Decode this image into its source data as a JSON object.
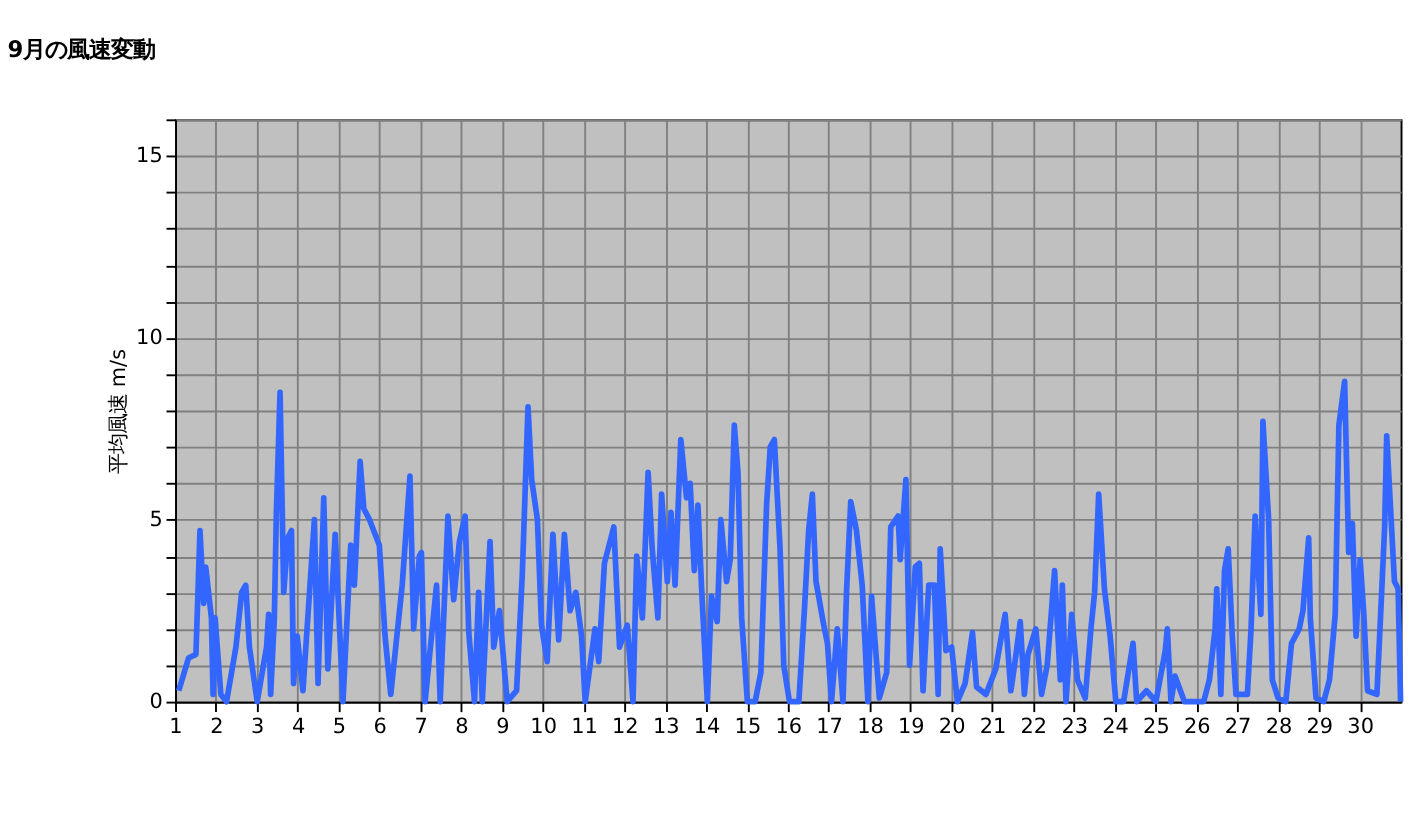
{
  "chart_data": {
    "type": "line",
    "title": "9月の風速変動",
    "ylabel": "平均風速 m/s",
    "xlim": [
      1,
      31
    ],
    "ylim": [
      0,
      16
    ],
    "xticks": [
      1,
      2,
      3,
      4,
      5,
      6,
      7,
      8,
      9,
      10,
      11,
      12,
      13,
      14,
      15,
      16,
      17,
      18,
      19,
      20,
      21,
      22,
      23,
      24,
      25,
      26,
      27,
      28,
      29,
      30
    ],
    "yticks": [
      0,
      {
        "value": 1,
        "label": null
      },
      {
        "value": 2,
        "label": null
      },
      {
        "value": 3,
        "label": null
      },
      {
        "value": 4,
        "label": null
      },
      5,
      {
        "value": 6,
        "label": null
      },
      {
        "value": 7,
        "label": null
      },
      {
        "value": 8,
        "label": null
      },
      {
        "value": 9,
        "label": null
      },
      10,
      {
        "value": 11,
        "label": null
      },
      {
        "value": 12,
        "label": null
      },
      {
        "value": 13,
        "label": null
      },
      {
        "value": 14,
        "label": null
      },
      15,
      {
        "value": 16,
        "label": null
      }
    ],
    "grid": true,
    "marker": "none",
    "line_style": "solid",
    "x": [
      1.09,
      1.33,
      1.51,
      1.61,
      1.7,
      1.75,
      1.89,
      1.93,
      1.98,
      2.12,
      2.26,
      2.49,
      2.63,
      2.73,
      2.82,
      3.01,
      3.24,
      3.29,
      3.34,
      3.43,
      3.48,
      3.57,
      3.66,
      3.76,
      3.85,
      3.9,
      3.99,
      4.13,
      4.41,
      4.5,
      4.64,
      4.74,
      4.92,
      5.11,
      5.3,
      5.39,
      5.53,
      5.62,
      5.76,
      6.0,
      6.14,
      6.28,
      6.56,
      6.75,
      6.84,
      6.98,
      7.03,
      7.12,
      7.4,
      7.49,
      7.68,
      7.82,
      7.96,
      8.1,
      8.19,
      8.33,
      8.43,
      8.52,
      8.71,
      8.8,
      8.94,
      9.13,
      9.36,
      9.5,
      9.64,
      9.73,
      9.87,
      9.97,
      10.11,
      10.25,
      10.39,
      10.53,
      10.67,
      10.81,
      10.95,
      11.04,
      11.28,
      11.37,
      11.51,
      11.74,
      11.88,
      12.07,
      12.21,
      12.3,
      12.44,
      12.58,
      12.68,
      12.82,
      12.91,
      13.05,
      13.14,
      13.24,
      13.38,
      13.52,
      13.61,
      13.71,
      13.8,
      13.89,
      14.03,
      14.13,
      14.27,
      14.36,
      14.5,
      14.59,
      14.69,
      14.78,
      14.87,
      15.01,
      15.2,
      15.34,
      15.48,
      15.57,
      15.67,
      15.81,
      15.9,
      16.04,
      16.27,
      16.41,
      16.51,
      16.6,
      16.69,
      16.88,
      16.97,
      17.07,
      17.21,
      17.35,
      17.44,
      17.54,
      17.68,
      17.82,
      17.96,
      18.05,
      18.24,
      18.42,
      18.52,
      18.7,
      18.75,
      18.89,
      18.98,
      19.12,
      19.22,
      19.31,
      19.45,
      19.59,
      19.68,
      19.73,
      19.87,
      20.01,
      20.15,
      20.34,
      20.52,
      20.62,
      20.85,
      21.09,
      21.32,
      21.46,
      21.55,
      21.69,
      21.79,
      21.88,
      22.07,
      22.21,
      22.35,
      22.53,
      22.67,
      22.72,
      22.81,
      22.95,
      23.09,
      23.28,
      23.42,
      23.51,
      23.61,
      23.75,
      23.89,
      24.03,
      24.22,
      24.45,
      24.54,
      24.78,
      25.01,
      25.24,
      25.29,
      25.38,
      25.48,
      25.71,
      26.18,
      26.32,
      26.46,
      26.5,
      26.6,
      26.69,
      26.78,
      26.88,
      26.97,
      27.25,
      27.34,
      27.44,
      27.58,
      27.63,
      27.77,
      27.86,
      28.0,
      28.19,
      28.33,
      28.52,
      28.61,
      28.75,
      28.79,
      28.93,
      29.12,
      29.26,
      29.4,
      29.49,
      29.63,
      29.73,
      29.82,
      29.91,
      30.01,
      30.1,
      30.19,
      30.42,
      30.52,
      30.61,
      30.66,
      30.85,
      30.94,
      31.0
    ],
    "series": [
      {
        "color": "#3366ff",
        "values": [
          0.3,
          1.2,
          1.3,
          4.7,
          2.7,
          3.7,
          2.3,
          0.2,
          2.3,
          0.2,
          0.0,
          1.5,
          3.0,
          3.2,
          1.5,
          0.0,
          1.5,
          2.4,
          0.2,
          2.3,
          5.2,
          8.5,
          3.0,
          4.5,
          4.7,
          0.5,
          1.8,
          0.3,
          5.0,
          0.5,
          5.6,
          0.9,
          4.6,
          0.0,
          4.3,
          3.2,
          6.6,
          5.3,
          5.0,
          4.3,
          1.8,
          0.2,
          3.2,
          6.2,
          2.0,
          4.0,
          4.1,
          0.0,
          3.2,
          0.0,
          5.1,
          2.8,
          4.4,
          5.1,
          1.9,
          0.0,
          3.0,
          0.0,
          4.4,
          1.5,
          2.5,
          0.0,
          0.3,
          3.5,
          8.1,
          6.1,
          5.0,
          2.1,
          1.1,
          4.6,
          1.7,
          4.6,
          2.5,
          3.0,
          1.8,
          0.0,
          2.0,
          1.1,
          3.8,
          4.8,
          1.5,
          2.1,
          0.0,
          4.0,
          2.3,
          6.3,
          4.2,
          2.3,
          5.7,
          3.3,
          5.2,
          3.2,
          7.2,
          5.6,
          6.0,
          3.6,
          5.4,
          3.1,
          0.0,
          2.9,
          2.2,
          5.0,
          3.3,
          3.9,
          7.6,
          6.3,
          2.3,
          0.0,
          0.0,
          0.8,
          5.4,
          7.0,
          7.2,
          4.2,
          1.0,
          0.0,
          0.0,
          2.6,
          4.7,
          5.7,
          3.3,
          2.1,
          1.6,
          0.0,
          2.0,
          0.0,
          3.1,
          5.5,
          4.7,
          3.2,
          0.0,
          2.9,
          0.1,
          0.8,
          4.8,
          5.1,
          3.9,
          6.1,
          1.0,
          3.7,
          3.8,
          0.3,
          3.2,
          3.2,
          0.2,
          4.2,
          1.4,
          1.5,
          0.0,
          0.5,
          1.9,
          0.4,
          0.2,
          0.9,
          2.4,
          0.3,
          1.0,
          2.2,
          0.2,
          1.3,
          2.0,
          0.2,
          1.0,
          3.6,
          0.6,
          3.2,
          0.0,
          2.4,
          0.6,
          0.1,
          2.0,
          3.0,
          5.7,
          3.1,
          1.8,
          0.0,
          0.0,
          1.6,
          0.0,
          0.3,
          0.0,
          1.4,
          2.0,
          0.0,
          0.7,
          0.0,
          0.0,
          0.6,
          2.0,
          3.1,
          0.2,
          3.6,
          4.2,
          1.8,
          0.2,
          0.2,
          2.0,
          5.1,
          2.4,
          7.7,
          5.0,
          0.6,
          0.1,
          0.0,
          1.6,
          2.0,
          2.5,
          4.5,
          2.3,
          0.1,
          0.0,
          0.6,
          2.4,
          7.6,
          8.8,
          4.1,
          4.9,
          1.8,
          3.9,
          2.4,
          0.3,
          0.2,
          2.6,
          4.8,
          7.3,
          3.3,
          3.1,
          0.0
        ]
      }
    ]
  }
}
